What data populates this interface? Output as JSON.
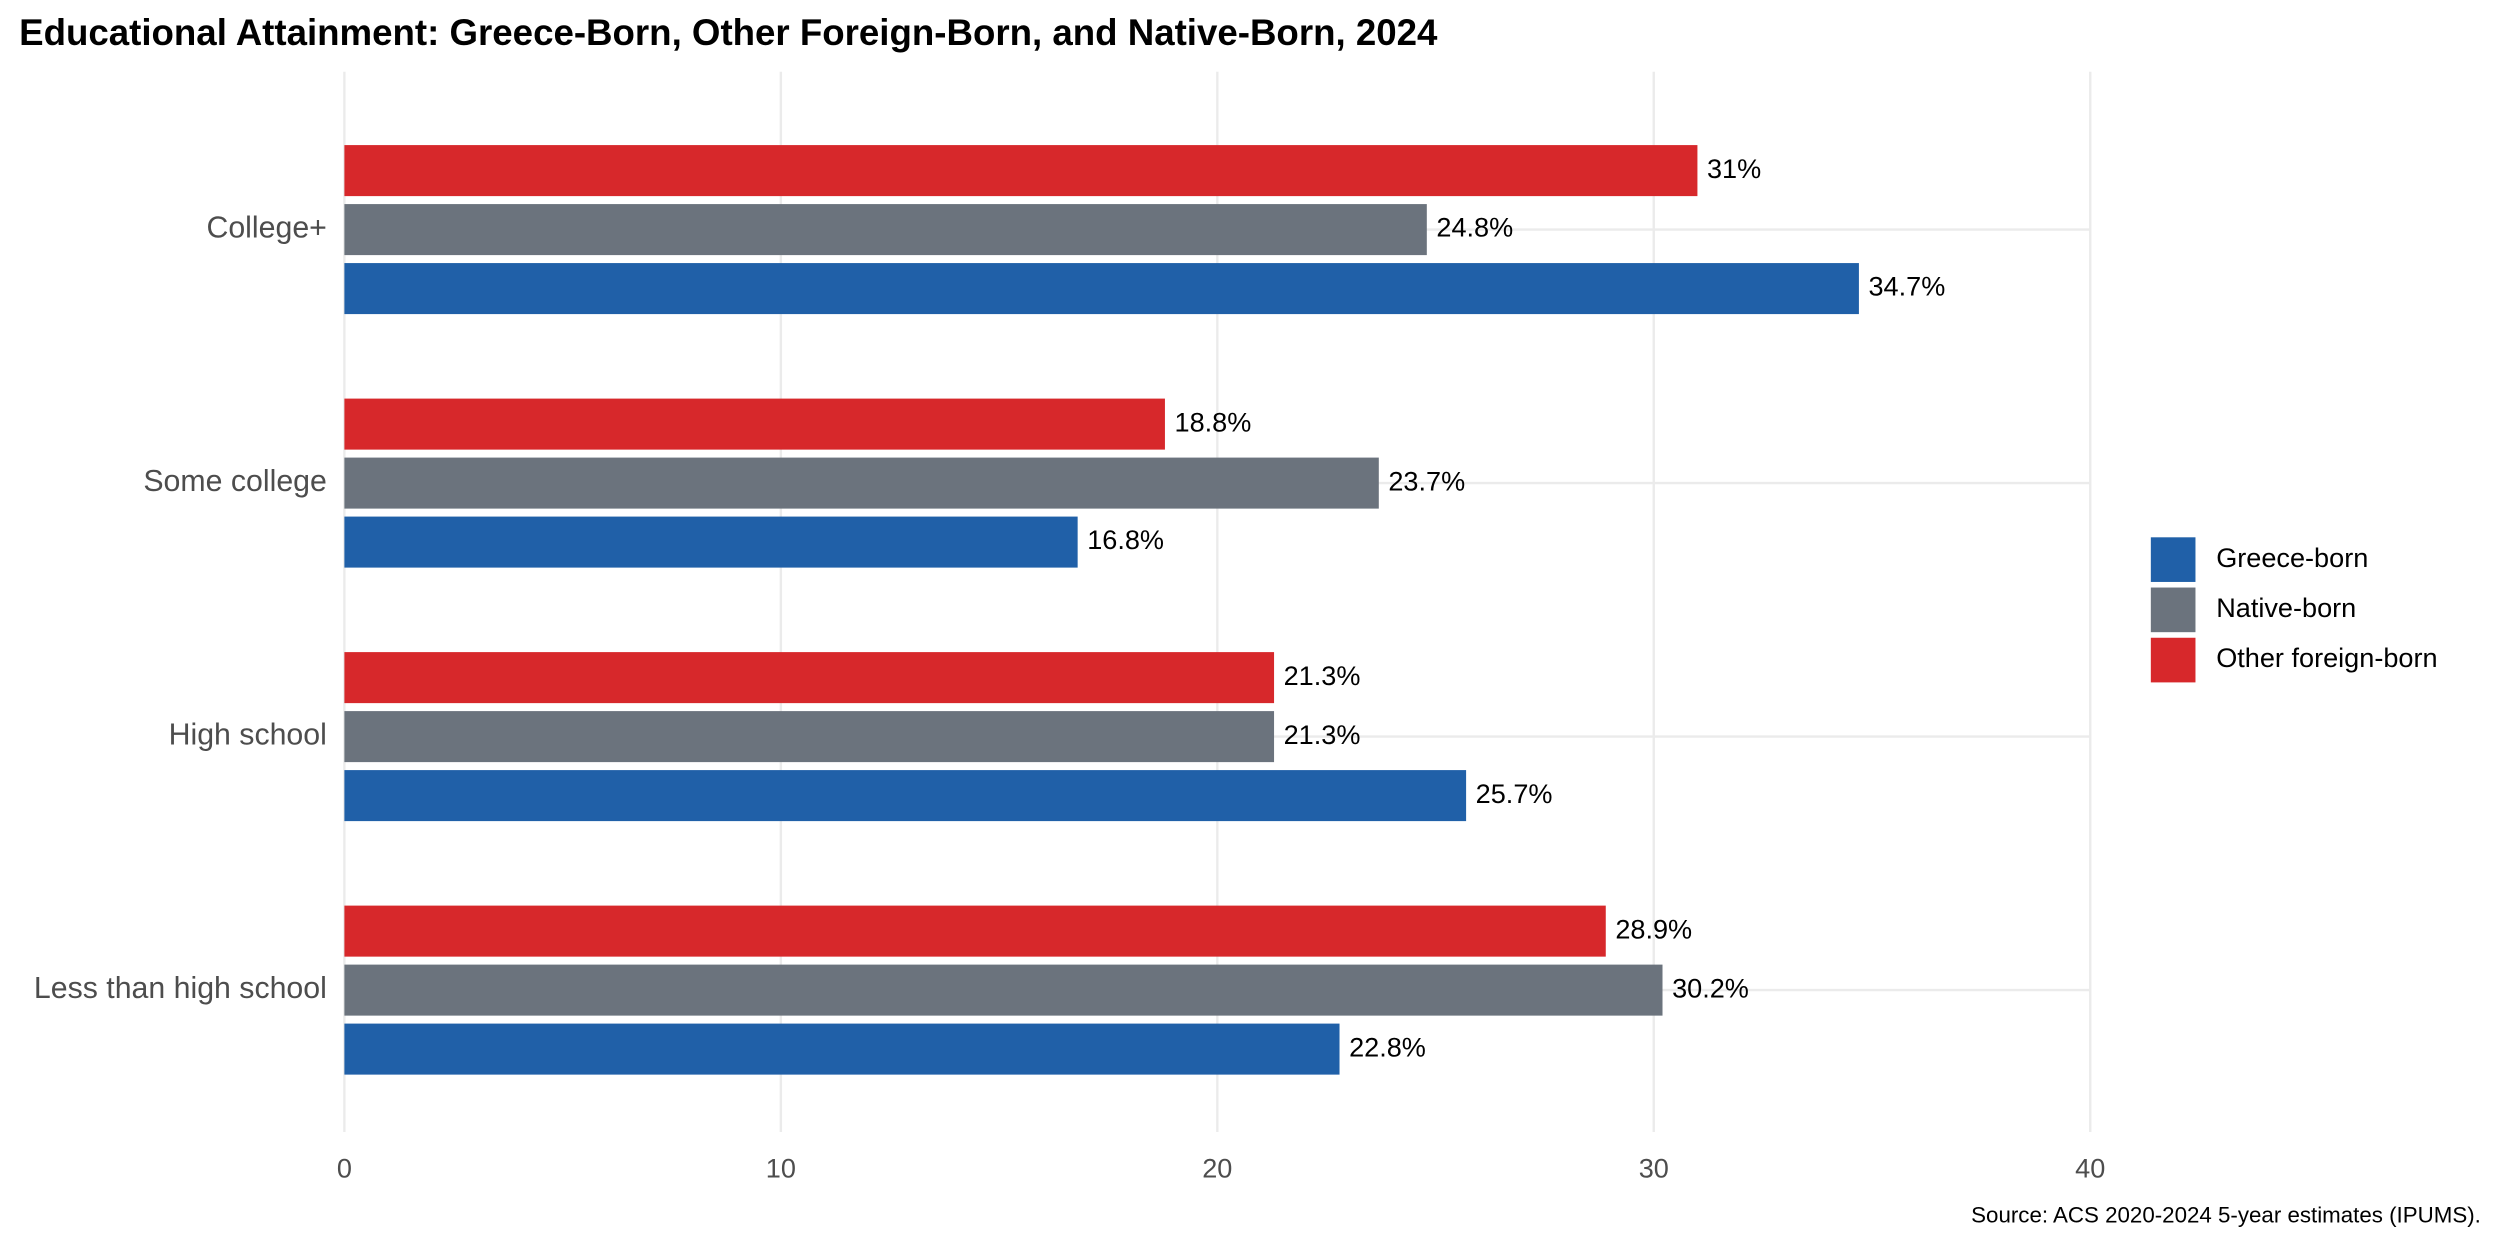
{
  "chart_data": {
    "type": "bar",
    "orientation": "horizontal",
    "title": "Educational Attainment: Greece-Born, Other Foreign-Born, and Native-Born, 2024",
    "caption": "Source: ACS 2020-2024 5-year estimates (IPUMS).",
    "categories": [
      "College+",
      "Some college",
      "High school",
      "Less than high school"
    ],
    "series": [
      {
        "name": "Greece-born",
        "color": "#2060a8",
        "values": [
          34.7,
          16.8,
          25.7,
          22.8
        ],
        "value_labels": [
          "34.7%",
          "16.8%",
          "25.7%",
          "22.8%"
        ]
      },
      {
        "name": "Native-born",
        "color": "#6b737d",
        "values": [
          24.8,
          23.7,
          21.3,
          30.2
        ],
        "value_labels": [
          "24.8%",
          "23.7%",
          "21.3%",
          "30.2%"
        ]
      },
      {
        "name": "Other foreign-born",
        "color": "#d7282b",
        "values": [
          31,
          18.8,
          21.3,
          28.9
        ],
        "value_labels": [
          "31%",
          "18.8%",
          "21.3%",
          "28.9%"
        ]
      }
    ],
    "xlim": [
      0,
      40
    ],
    "xticks": [
      0,
      10,
      20,
      30,
      40
    ],
    "grid": true,
    "legend": "right"
  }
}
